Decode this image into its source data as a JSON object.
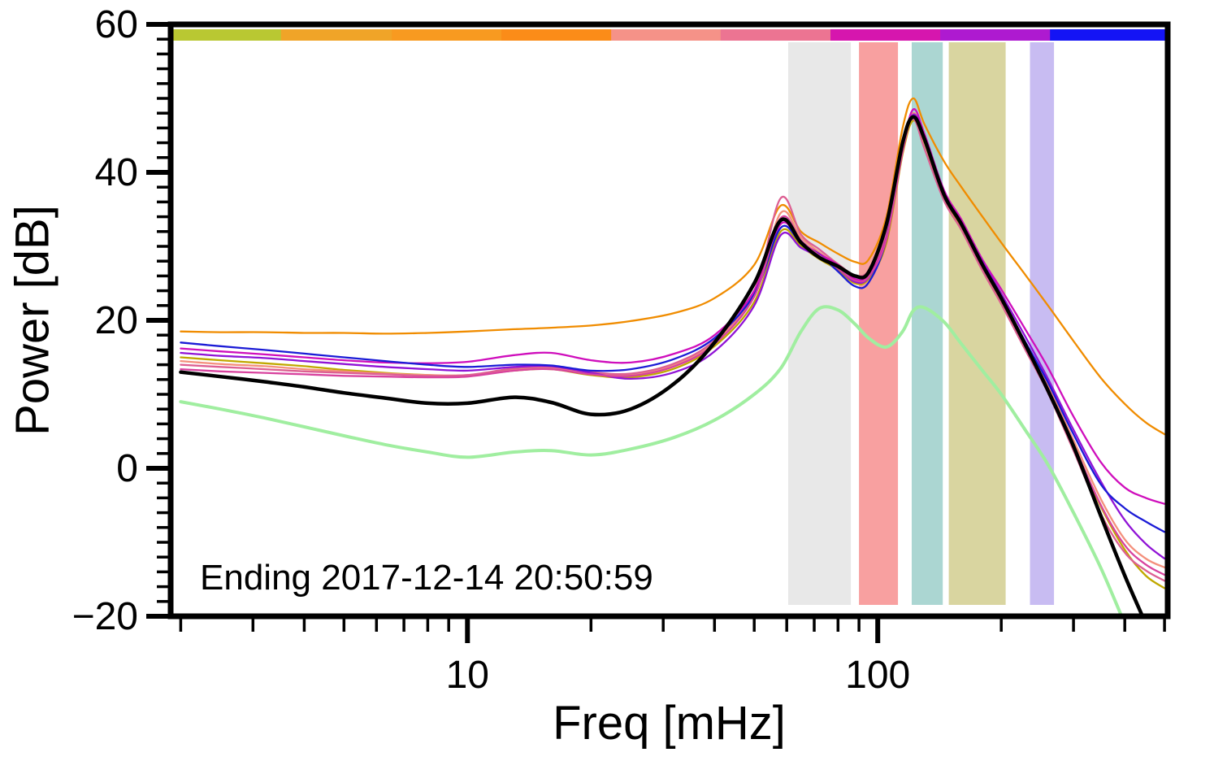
{
  "chart_data": {
    "type": "line",
    "title": "",
    "xlabel": "Freq [mHz]",
    "ylabel": "Power [dB]",
    "annotation": "Ending 2017-12-14 20:50:59",
    "xscale": "log",
    "grid": false,
    "legend": "none",
    "xlim": [
      1.89,
      509
    ],
    "ylim": [
      -20,
      60
    ],
    "xticks": {
      "major": [
        10,
        100
      ],
      "major_labels": [
        "10",
        "100"
      ],
      "minor": [
        2,
        3,
        4,
        5,
        6,
        7,
        8,
        9,
        20,
        30,
        40,
        50,
        60,
        70,
        80,
        90,
        200,
        300,
        400,
        500
      ]
    },
    "yticks": {
      "major": [
        -20,
        0,
        20,
        40,
        60
      ],
      "major_labels": [
        "−20",
        "0",
        "20",
        "40",
        "60"
      ],
      "minor_step": 2
    },
    "x": [
      2,
      2.5,
      3.2,
      4,
      5,
      6.3,
      8,
      10,
      13,
      16,
      20,
      25,
      32,
      40,
      50,
      58,
      65,
      72,
      80,
      88,
      95,
      105,
      115,
      122,
      130,
      145,
      160,
      180,
      200,
      230,
      260,
      300,
      350,
      400,
      450,
      500
    ],
    "series": [
      {
        "name": "orange",
        "color": "#f08c00",
        "width": 2.3,
        "values": [
          18.5,
          18.4,
          18.4,
          18.3,
          18.3,
          18.2,
          18.3,
          18.5,
          18.8,
          19.0,
          19.3,
          19.9,
          21.0,
          23.0,
          27.5,
          35.5,
          32.0,
          30.5,
          29.0,
          27.9,
          28.2,
          34.0,
          46.0,
          50.0,
          46.5,
          41.5,
          38.0,
          34.0,
          30.5,
          26.0,
          22.0,
          17.2,
          12.2,
          8.7,
          6.2,
          4.6
        ]
      },
      {
        "name": "olive",
        "color": "#c0a800",
        "width": 2.3,
        "values": [
          15.0,
          14.6,
          14.2,
          13.8,
          13.3,
          12.9,
          12.6,
          12.5,
          13.2,
          13.4,
          12.6,
          12.3,
          13.5,
          16.5,
          22.5,
          32.0,
          30.0,
          28.3,
          26.8,
          25.0,
          25.6,
          30.5,
          42.5,
          47.0,
          44.0,
          36.5,
          32.5,
          27.0,
          22.5,
          16.0,
          10.5,
          2.8,
          -5.2,
          -11.0,
          -14.5,
          -16.2
        ]
      },
      {
        "name": "salmon",
        "color": "#f4907c",
        "width": 2.3,
        "values": [
          14.5,
          14.1,
          13.8,
          13.4,
          13.1,
          12.8,
          12.6,
          12.6,
          13.3,
          13.5,
          12.8,
          12.7,
          14.0,
          17.0,
          23.5,
          34.5,
          31.2,
          29.2,
          27.4,
          25.9,
          26.4,
          31.5,
          43.2,
          48.0,
          44.6,
          37.2,
          33.2,
          27.6,
          23.2,
          16.8,
          11.2,
          3.8,
          -4.2,
          -9.6,
          -12.2,
          -13.4
        ]
      },
      {
        "name": "rose",
        "color": "#dd5f92",
        "width": 2.3,
        "values": [
          14.0,
          13.7,
          13.4,
          13.1,
          12.9,
          12.7,
          12.5,
          12.6,
          13.5,
          13.7,
          13.0,
          12.8,
          14.2,
          17.3,
          24.0,
          36.5,
          31.6,
          29.6,
          27.6,
          26.1,
          26.7,
          31.8,
          43.6,
          47.2,
          43.2,
          36.2,
          32.2,
          26.7,
          22.2,
          15.8,
          10.2,
          2.4,
          -6.2,
          -11.4,
          -13.8,
          -15.2
        ]
      },
      {
        "name": "magenta",
        "color": "#cf0ebc",
        "width": 2.3,
        "values": [
          16.2,
          15.8,
          15.4,
          15.0,
          14.6,
          14.3,
          14.2,
          14.4,
          15.3,
          15.6,
          14.6,
          14.3,
          15.5,
          18.0,
          24.0,
          33.0,
          30.6,
          29.0,
          27.5,
          25.6,
          26.1,
          31.2,
          43.0,
          48.5,
          45.2,
          37.6,
          33.6,
          28.2,
          24.2,
          18.6,
          13.6,
          7.0,
          0.8,
          -2.6,
          -4.0,
          -4.8
        ]
      },
      {
        "name": "purple",
        "color": "#9013d6",
        "width": 2.3,
        "values": [
          15.6,
          15.2,
          14.9,
          14.5,
          14.1,
          13.7,
          13.4,
          13.2,
          13.7,
          13.8,
          12.9,
          12.1,
          13.0,
          15.8,
          22.0,
          31.5,
          29.8,
          28.6,
          27.0,
          25.2,
          25.8,
          31.0,
          43.2,
          47.8,
          44.8,
          37.1,
          33.1,
          27.9,
          23.6,
          17.6,
          12.1,
          5.2,
          -1.8,
          -7.0,
          -10.2,
          -12.2
        ]
      },
      {
        "name": "blue",
        "color": "#1b1bd6",
        "width": 2.3,
        "values": [
          17.0,
          16.5,
          16.0,
          15.5,
          15.0,
          14.5,
          14.0,
          13.7,
          14.0,
          13.9,
          13.2,
          13.4,
          14.8,
          17.6,
          23.5,
          32.5,
          30.4,
          28.9,
          26.6,
          24.6,
          25.1,
          31.0,
          43.4,
          47.4,
          44.4,
          37.0,
          33.0,
          27.4,
          23.1,
          16.9,
          11.6,
          4.6,
          -2.2,
          -5.4,
          -7.2,
          -8.6
        ]
      },
      {
        "name": "magenta2",
        "color": "#d8429e",
        "width": 2.3,
        "values": [
          13.4,
          13.1,
          12.9,
          12.7,
          12.5,
          12.4,
          12.3,
          12.4,
          13.2,
          13.4,
          12.7,
          12.5,
          13.8,
          16.8,
          23.2,
          33.8,
          30.8,
          28.8,
          27.0,
          25.4,
          25.9,
          31.0,
          42.8,
          47.6,
          44.2,
          36.8,
          32.8,
          27.2,
          22.8,
          16.4,
          10.8,
          3.2,
          -5.0,
          -10.4,
          -13.0,
          -14.4
        ]
      },
      {
        "name": "pale-green",
        "color": "#a0eea0",
        "width": 4.0,
        "values": [
          9.0,
          8.0,
          6.8,
          5.6,
          4.4,
          3.2,
          2.2,
          1.5,
          2.2,
          2.4,
          1.8,
          2.6,
          4.2,
          6.5,
          10.0,
          13.5,
          18.5,
          21.6,
          21.4,
          19.5,
          17.6,
          16.4,
          18.5,
          21.3,
          21.7,
          19.8,
          16.8,
          13.2,
          10.0,
          5.0,
          0.5,
          -6.0,
          -13.5,
          -21.0,
          -27.5,
          -33.0
        ]
      },
      {
        "name": "black",
        "color": "#000000",
        "width": 4.5,
        "values": [
          13.0,
          12.4,
          11.7,
          11.0,
          10.2,
          9.5,
          8.8,
          8.8,
          9.6,
          8.9,
          7.3,
          8.0,
          11.5,
          17.0,
          25.0,
          33.5,
          30.5,
          28.5,
          27.3,
          26.0,
          26.5,
          33.0,
          44.0,
          47.5,
          44.5,
          37.0,
          33.0,
          27.5,
          23.0,
          16.5,
          10.5,
          3.0,
          -6.5,
          -14.5,
          -21.0,
          -27.0
        ]
      }
    ],
    "top_bar": [
      {
        "color": "#b9c832",
        "range": [
          1.89,
          3.51
        ]
      },
      {
        "color": "#f0a428",
        "range": [
          3.51,
          6.54
        ]
      },
      {
        "color": "#f89a20",
        "range": [
          6.54,
          12.1
        ]
      },
      {
        "color": "#fb8c18",
        "range": [
          12.1,
          22.4
        ]
      },
      {
        "color": "#f59288",
        "range": [
          22.4,
          41.4
        ]
      },
      {
        "color": "#ec7492",
        "range": [
          41.4,
          76.7
        ]
      },
      {
        "color": "#d616ae",
        "range": [
          76.7,
          142
        ]
      },
      {
        "color": "#ae1ad0",
        "range": [
          142,
          263
        ]
      },
      {
        "color": "#1414f5",
        "range": [
          263,
          509
        ]
      }
    ],
    "bands": [
      {
        "name": "gray",
        "color": "#e8e8e8",
        "range": [
          60.5,
          86
        ]
      },
      {
        "name": "red",
        "color": "#f8a0a0",
        "range": [
          90,
          112
        ]
      },
      {
        "name": "teal",
        "color": "#abd6d2",
        "range": [
          121,
          144
        ]
      },
      {
        "name": "khaki",
        "color": "#d9d5a0",
        "range": [
          149,
          205
        ]
      },
      {
        "name": "lavender",
        "color": "#c8bcf2",
        "range": [
          235,
          269
        ]
      }
    ]
  }
}
